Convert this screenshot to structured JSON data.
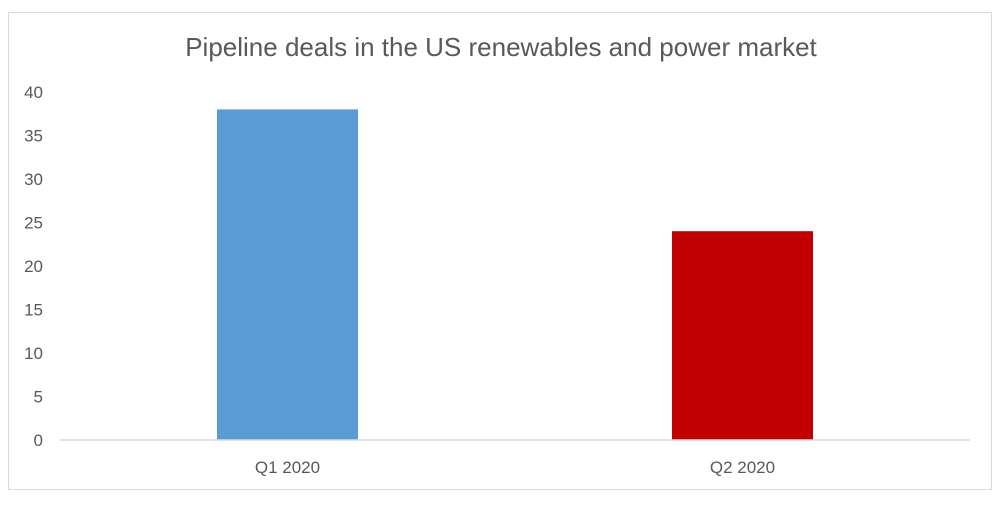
{
  "chart_data": {
    "type": "bar",
    "title": "Pipeline deals in the US renewables and power market",
    "categories": [
      "Q1 2020",
      "Q2 2020"
    ],
    "values": [
      38,
      24
    ],
    "bar_colors": [
      "#5b9bd5",
      "#c00000"
    ],
    "ylim": [
      0,
      40
    ],
    "yticks": [
      "0",
      "5",
      "10",
      "15",
      "20",
      "25",
      "30",
      "35",
      "40"
    ],
    "grid": false,
    "legend": "none"
  }
}
